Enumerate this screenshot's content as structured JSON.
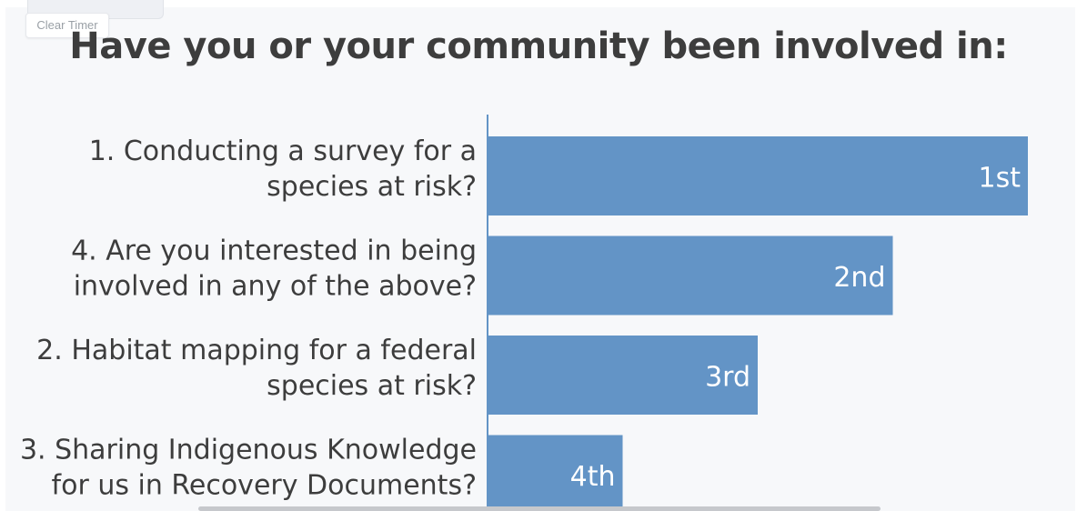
{
  "toolbar": {
    "clear_timer_label": "Clear Timer"
  },
  "colors": {
    "bar": "#6394c6",
    "text": "#3d3d3d",
    "bar_label": "#ffffff",
    "axis": "#6394c6"
  },
  "chart_data": {
    "type": "bar",
    "orientation": "horizontal",
    "title": "Have you or your community been involved in:",
    "categories": [
      [
        "1. Conducting a survey for a",
        "species at risk?"
      ],
      [
        "4. Are you interested in being",
        "involved in any of the above?"
      ],
      [
        "2. Habitat mapping for a federal",
        "species at risk?"
      ],
      [
        "3. Sharing Indigenous Knowledge",
        "for us in Recovery Documents?"
      ]
    ],
    "values": [
      4,
      3,
      2,
      1
    ],
    "data_labels": [
      "1st",
      "2nd",
      "3rd",
      "4th"
    ],
    "xlim": [
      0,
      4
    ],
    "grid": false,
    "legend": "none"
  }
}
